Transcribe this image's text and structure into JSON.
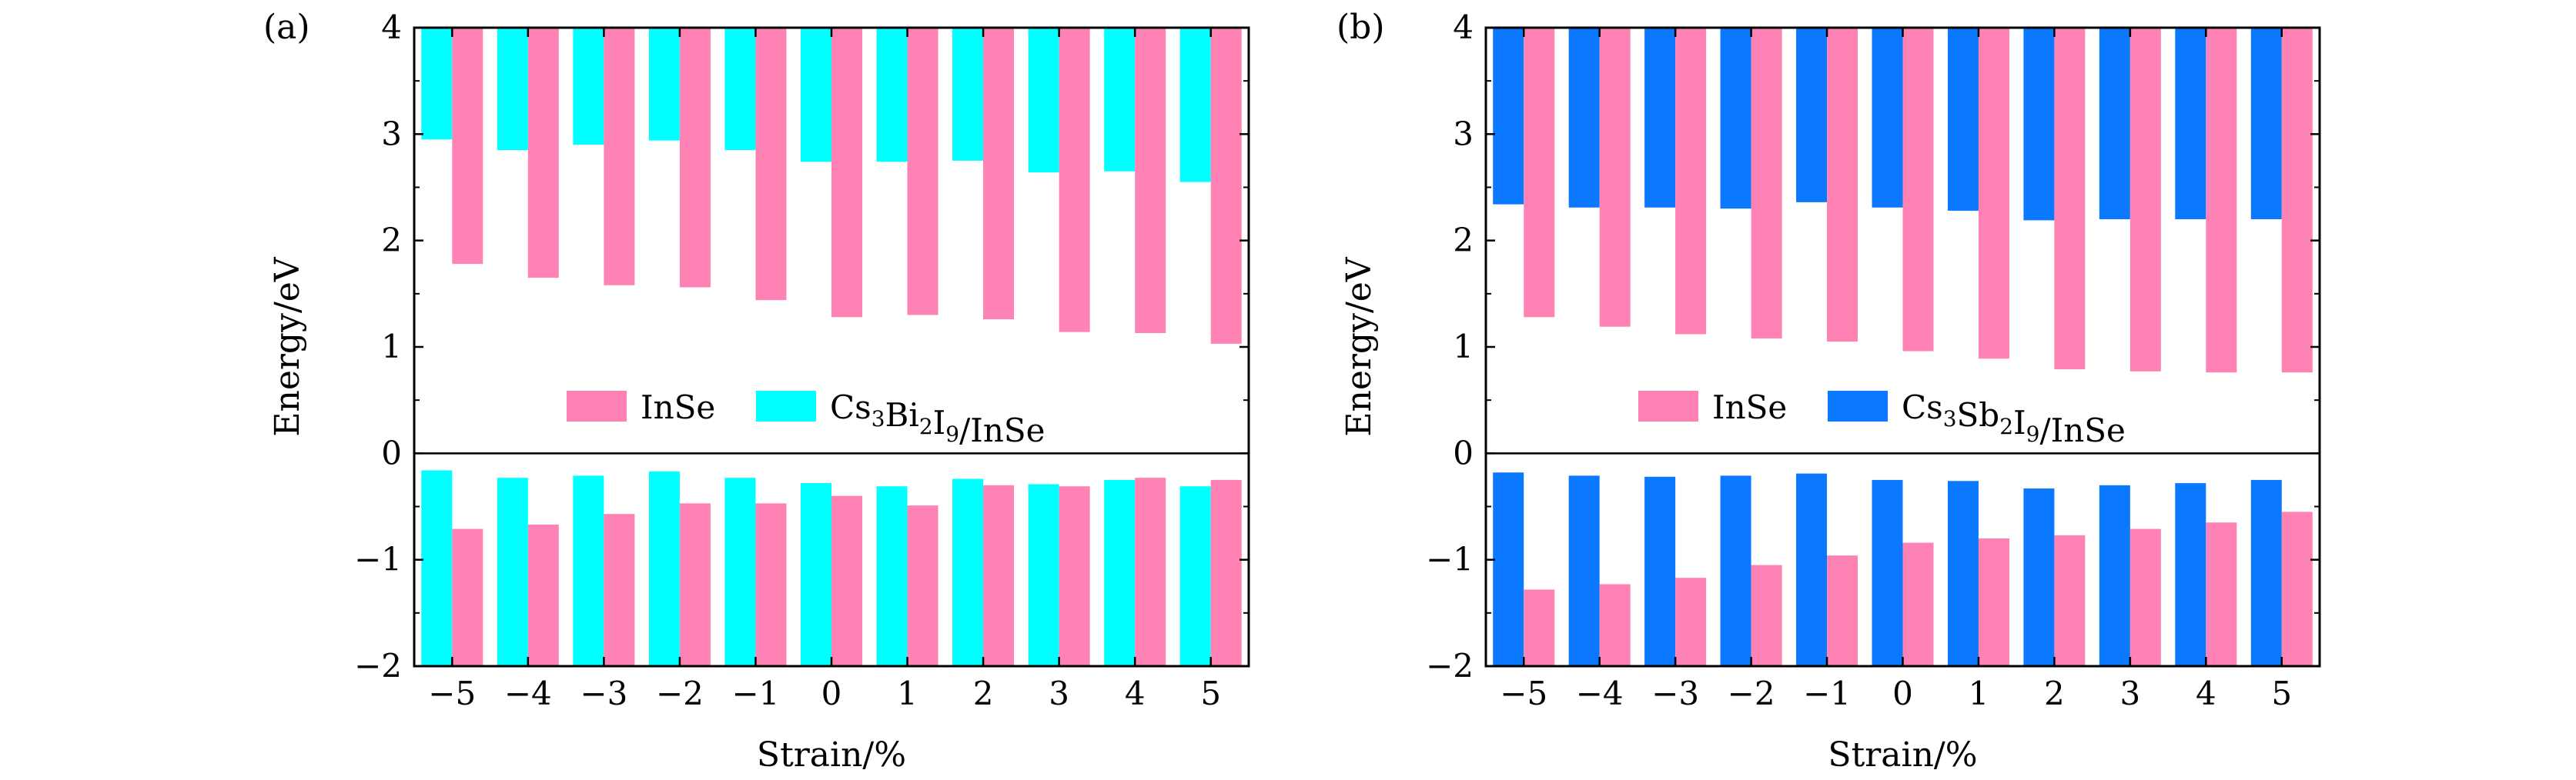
{
  "chart_data": [
    {
      "panel_label": "(a)",
      "type": "bar",
      "xlabel": "Strain/%",
      "ylabel": "Energy/eV",
      "ylim": [
        -2,
        4
      ],
      "yticks": [
        4,
        3,
        2,
        1,
        0,
        -1,
        -2
      ],
      "ytick_labels": [
        "4",
        "3",
        "2",
        "1",
        "0",
        "−1",
        "−2"
      ],
      "categories": [
        "−5",
        "−4",
        "−3",
        "−2",
        "−1",
        "0",
        "1",
        "2",
        "3",
        "4",
        "5"
      ],
      "x": [
        -5,
        -4,
        -3,
        -2,
        -1,
        0,
        1,
        2,
        3,
        4,
        5
      ],
      "baseline_top": 4,
      "baseline_bottom": -2,
      "legend_placement": "lower-center of upper region",
      "series": [
        {
          "name": "Cs3Bi2I9/InSe",
          "legend_parts": [
            [
              "Cs",
              ""
            ],
            [
              "3",
              "sub"
            ],
            [
              "Bi",
              ""
            ],
            [
              "2",
              "sub"
            ],
            [
              "I",
              ""
            ],
            [
              "9",
              "sub"
            ],
            [
              "/InSe",
              ""
            ]
          ],
          "color": "#00ffff",
          "cbm": [
            2.95,
            2.85,
            2.9,
            2.94,
            2.85,
            2.74,
            2.74,
            2.75,
            2.64,
            2.65,
            2.55
          ],
          "vbm": [
            -0.16,
            -0.23,
            -0.21,
            -0.17,
            -0.23,
            -0.28,
            -0.31,
            -0.24,
            -0.29,
            -0.25,
            -0.31
          ]
        },
        {
          "name": "InSe",
          "legend_parts": [
            [
              "InSe",
              ""
            ]
          ],
          "color": "#ff82b4",
          "cbm": [
            1.78,
            1.65,
            1.58,
            1.56,
            1.44,
            1.28,
            1.3,
            1.26,
            1.14,
            1.13,
            1.03
          ],
          "vbm": [
            -0.71,
            -0.67,
            -0.57,
            -0.47,
            -0.47,
            -0.4,
            -0.49,
            -0.3,
            -0.31,
            -0.23,
            -0.25
          ]
        }
      ]
    },
    {
      "panel_label": "(b)",
      "type": "bar",
      "xlabel": "Strain/%",
      "ylabel": "Energy/eV",
      "ylim": [
        -2,
        4
      ],
      "yticks": [
        4,
        3,
        2,
        1,
        0,
        -1,
        -2
      ],
      "ytick_labels": [
        "4",
        "3",
        "2",
        "1",
        "0",
        "−1",
        "−2"
      ],
      "categories": [
        "−5",
        "−4",
        "−3",
        "−2",
        "−1",
        "0",
        "1",
        "2",
        "3",
        "4",
        "5"
      ],
      "x": [
        -5,
        -4,
        -3,
        -2,
        -1,
        0,
        1,
        2,
        3,
        4,
        5
      ],
      "baseline_top": 4,
      "baseline_bottom": -2,
      "legend_placement": "lower-center of upper region",
      "series": [
        {
          "name": "Cs3Sb2I9/InSe",
          "legend_parts": [
            [
              "Cs",
              ""
            ],
            [
              "3",
              "sub"
            ],
            [
              "Sb",
              ""
            ],
            [
              "2",
              "sub"
            ],
            [
              "I",
              ""
            ],
            [
              "9",
              "sub"
            ],
            [
              "/InSe",
              ""
            ]
          ],
          "color": "#0a78ff",
          "cbm": [
            2.34,
            2.31,
            2.31,
            2.3,
            2.36,
            2.31,
            2.28,
            2.19,
            2.2,
            2.2,
            2.2
          ],
          "vbm": [
            -0.18,
            -0.21,
            -0.22,
            -0.21,
            -0.19,
            -0.25,
            -0.26,
            -0.33,
            -0.3,
            -0.28,
            -0.25
          ]
        },
        {
          "name": "InSe",
          "legend_parts": [
            [
              "InSe",
              ""
            ]
          ],
          "color": "#ff82b4",
          "cbm": [
            1.28,
            1.19,
            1.12,
            1.08,
            1.05,
            0.96,
            0.89,
            0.79,
            0.77,
            0.76,
            0.76
          ],
          "vbm": [
            -1.28,
            -1.23,
            -1.17,
            -1.05,
            -0.96,
            -0.84,
            -0.8,
            -0.77,
            -0.71,
            -0.65,
            -0.55
          ]
        }
      ]
    }
  ]
}
